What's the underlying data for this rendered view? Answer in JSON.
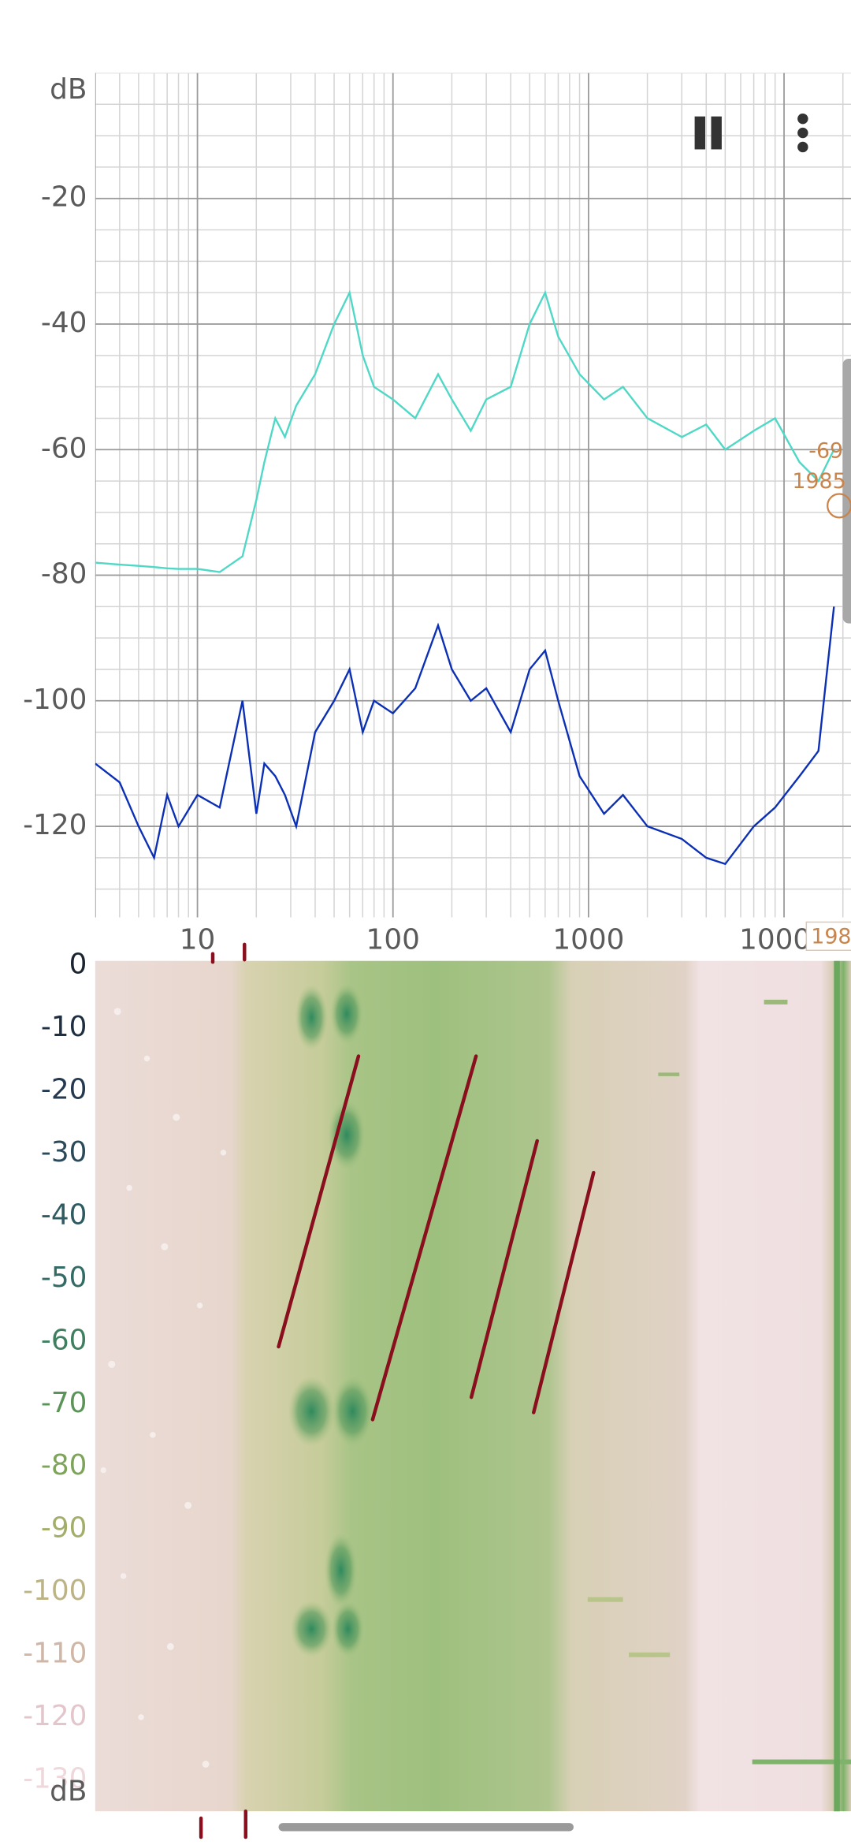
{
  "chart_data": [
    {
      "type": "line",
      "x_scale": "log",
      "grid": true,
      "xlim": [
        3,
        22000
      ],
      "ylim": [
        -134.5,
        0
      ],
      "xticks": [
        10,
        100,
        1000,
        10000
      ],
      "yticks": [
        -20,
        -40,
        -60,
        -80,
        -100,
        -120
      ],
      "y_label": "dB",
      "x": [
        3,
        4,
        5,
        6,
        7,
        8,
        10,
        13,
        17,
        20,
        22,
        25,
        28,
        32,
        40,
        50,
        60,
        70,
        80,
        100,
        130,
        170,
        200,
        250,
        300,
        400,
        500,
        600,
        700,
        900,
        1200,
        1500,
        2000,
        3000,
        4000,
        5000,
        7000,
        9000,
        12000,
        15000,
        18000
      ],
      "series": [
        {
          "color": "#4fd8c6",
          "values": [
            -78,
            -78.3,
            -78.5,
            -78.7,
            -78.9,
            -79,
            -79,
            -79.5,
            -77,
            -68,
            -62,
            -55,
            -58,
            -53,
            -48,
            -40,
            -35,
            -45,
            -50,
            -52,
            -55,
            -48,
            -52,
            -57,
            -52,
            -50,
            -40,
            -35,
            -42,
            -48,
            -52,
            -50,
            -55,
            -58,
            -56,
            -60,
            -57,
            -55,
            -62,
            -65,
            -60
          ]
        },
        {
          "color": "#0b2fb5",
          "values": [
            -110,
            -113,
            -120,
            -125,
            -115,
            -120,
            -115,
            -117,
            -100,
            -118,
            -110,
            -112,
            -115,
            -120,
            -105,
            -100,
            -95,
            -105,
            -100,
            -102,
            -98,
            -88,
            -95,
            -100,
            -98,
            -105,
            -95,
            -92,
            -100,
            -112,
            -118,
            -115,
            -120,
            -122,
            -125,
            -126,
            -120,
            -117,
            -112,
            -108,
            -85
          ]
        }
      ],
      "annotations": [
        "-69",
        "1985",
        "198"
      ]
    },
    {
      "type": "heatmap",
      "ylim": [
        -135,
        0
      ],
      "yticks": [
        0,
        -10,
        -20,
        -30,
        -40,
        -50,
        -60,
        -70,
        -80,
        -90,
        -100,
        -110,
        -120,
        -130
      ],
      "y_label": "dB"
    }
  ]
}
